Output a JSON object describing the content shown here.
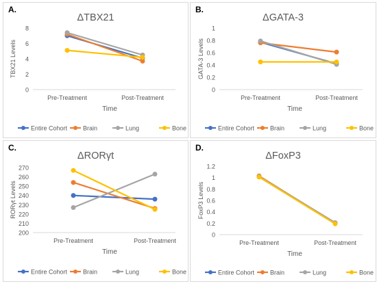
{
  "chart_data": [
    {
      "panel_label": "A.",
      "type": "line",
      "title": "ΔTBX21",
      "xlabel": "Time",
      "ylabel": "TBX21 Levels",
      "categories": [
        "Pre-Treatment",
        "Post-Treatment"
      ],
      "ylim": [
        0,
        8
      ],
      "yticks": [
        0,
        2,
        4,
        6,
        8
      ],
      "yticklabels": [
        "0",
        "2",
        "4",
        "6",
        "8"
      ],
      "grid": false,
      "legend": "bottom",
      "series": [
        {
          "name": "Entire Cohort",
          "color": "#4472C4",
          "values": [
            7.0,
            4.1
          ]
        },
        {
          "name": "Brain",
          "color": "#ED7D31",
          "values": [
            7.2,
            3.7
          ]
        },
        {
          "name": "Lung",
          "color": "#A5A5A5",
          "values": [
            7.4,
            4.5
          ]
        },
        {
          "name": "Bone",
          "color": "#FFC000",
          "values": [
            5.1,
            4.2
          ]
        }
      ]
    },
    {
      "panel_label": "B.",
      "type": "line",
      "title": "ΔGATA-3",
      "xlabel": "Time",
      "ylabel": "GATA-3 Levels",
      "categories": [
        "Pre-Treatment",
        "Post-Treatment"
      ],
      "ylim": [
        0,
        1
      ],
      "yticks": [
        0,
        0.2,
        0.4,
        0.6,
        0.8,
        1
      ],
      "yticklabels": [
        "0",
        "0.2",
        "0.4",
        "0.6",
        "0.8",
        "1"
      ],
      "grid": false,
      "legend": "bottom",
      "series": [
        {
          "name": "Entire Cohort",
          "color": "#4472C4",
          "values": [
            0.77,
            0.42
          ]
        },
        {
          "name": "Brain",
          "color": "#ED7D31",
          "values": [
            0.76,
            0.61
          ]
        },
        {
          "name": "Lung",
          "color": "#A5A5A5",
          "values": [
            0.79,
            0.41
          ]
        },
        {
          "name": "Bone",
          "color": "#FFC000",
          "values": [
            0.45,
            0.45
          ]
        }
      ]
    },
    {
      "panel_label": "C.",
      "type": "line",
      "title": "ΔRORγt",
      "xlabel": "Time",
      "ylabel": "RORγt Levels",
      "categories": [
        "Pre-Treatment",
        "Post-Treatment"
      ],
      "ylim": [
        200,
        270
      ],
      "yticks": [
        200,
        210,
        220,
        230,
        240,
        250,
        260,
        270
      ],
      "yticklabels": [
        "200",
        "210",
        "220",
        "230",
        "240",
        "250",
        "260",
        "270"
      ],
      "grid": false,
      "legend": "bottom",
      "series": [
        {
          "name": "Entire Cohort",
          "color": "#4472C4",
          "values": [
            240,
            236
          ]
        },
        {
          "name": "Brain",
          "color": "#ED7D31",
          "values": [
            254,
            226
          ]
        },
        {
          "name": "Lung",
          "color": "#A5A5A5",
          "values": [
            227,
            263
          ]
        },
        {
          "name": "Bone",
          "color": "#FFC000",
          "values": [
            267,
            225
          ]
        }
      ]
    },
    {
      "panel_label": "D.",
      "type": "line",
      "title": "ΔFoxP3",
      "xlabel": "Time",
      "ylabel": "FoxP3 Levels",
      "categories": [
        "Pre-Treatment",
        "Post-Treatment"
      ],
      "ylim": [
        0,
        1.2
      ],
      "yticks": [
        0,
        0.2,
        0.4,
        0.6,
        0.8,
        1,
        1.2
      ],
      "yticklabels": [
        "0",
        "0.2",
        "0.4",
        "0.6",
        "0.8",
        "1",
        "1.2"
      ],
      "grid": false,
      "legend": "bottom",
      "series": [
        {
          "name": "Entire Cohort",
          "color": "#4472C4",
          "values": [
            1.02,
            0.2
          ]
        },
        {
          "name": "Brain",
          "color": "#ED7D31",
          "values": [
            1.03,
            0.2
          ]
        },
        {
          "name": "Lung",
          "color": "#A5A5A5",
          "values": [
            1.02,
            0.21
          ]
        },
        {
          "name": "Bone",
          "color": "#FFC000",
          "values": [
            1.01,
            0.19
          ]
        }
      ]
    }
  ]
}
